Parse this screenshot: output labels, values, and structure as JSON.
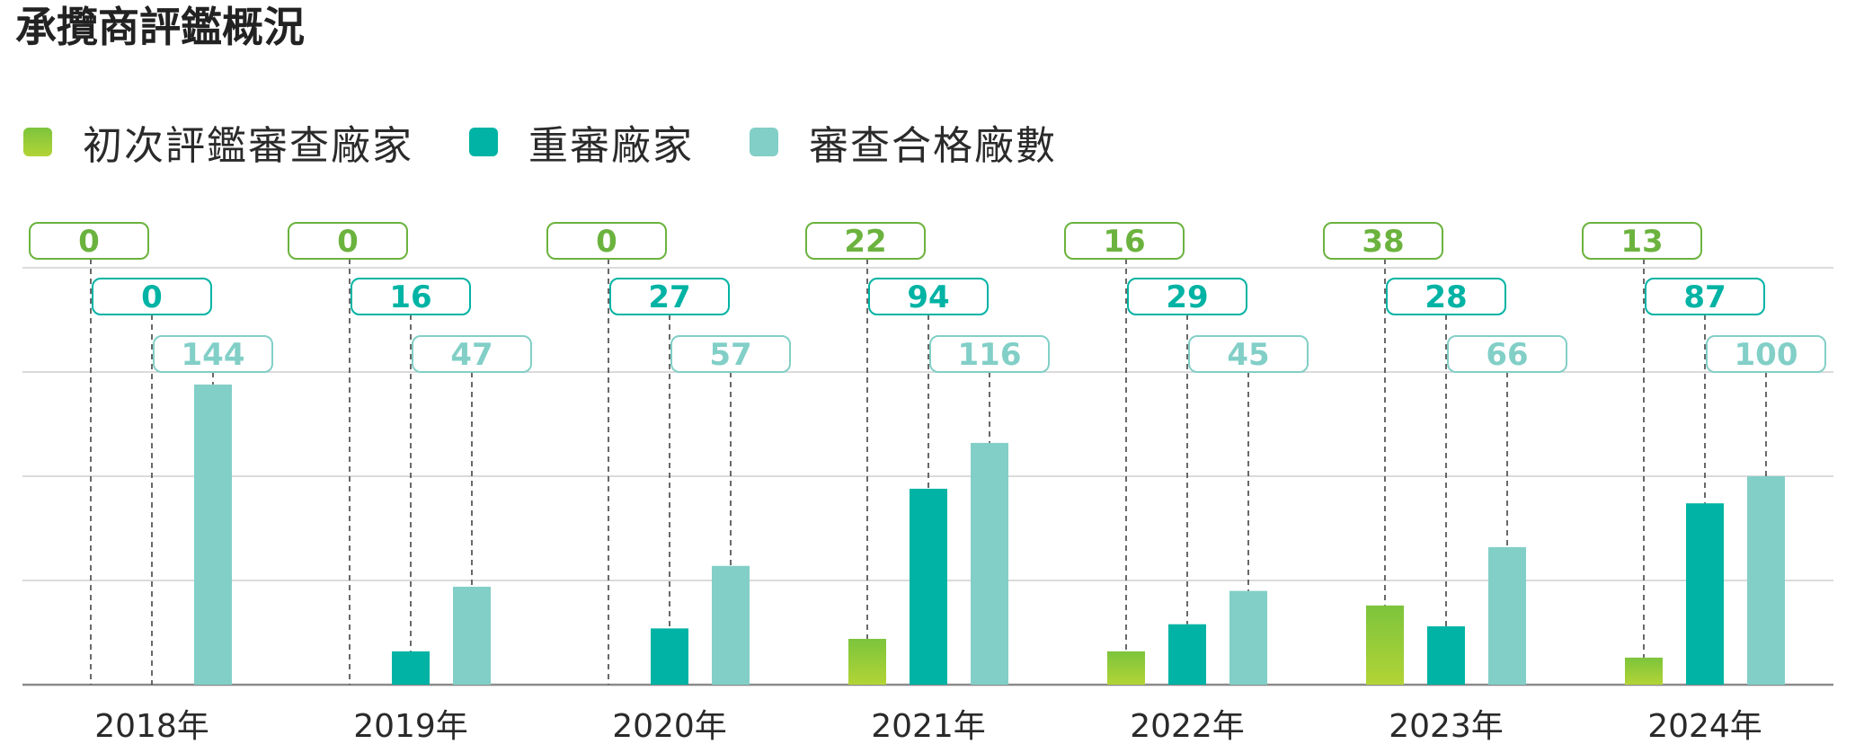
{
  "title": "承攬商評鑑概況",
  "colors": {
    "initial": [
      "#7cc43c",
      "#b2d436"
    ],
    "reaudit": "#00b3a4",
    "qualified": "#82cfc7",
    "initial_label": "#6bb33e",
    "grid": "#cfcfcf",
    "axis": "#8a8a8a",
    "leader": "#444444"
  },
  "chart_data": {
    "type": "bar",
    "title": "承攬商評鑑概況",
    "categories": [
      "2018年",
      "2019年",
      "2020年",
      "2021年",
      "2022年",
      "2023年",
      "2024年"
    ],
    "series": [
      {
        "name": "初次評鑑審查廠家",
        "values": [
          0,
          0,
          0,
          22,
          16,
          38,
          13
        ]
      },
      {
        "name": "重審廠家",
        "values": [
          0,
          16,
          27,
          94,
          29,
          28,
          87
        ]
      },
      {
        "name": "審查合格廠數",
        "values": [
          144,
          47,
          57,
          116,
          45,
          66,
          100
        ]
      }
    ],
    "ylim": [
      0,
      200
    ],
    "grid": true,
    "legend_position": "top-left",
    "data_labels": true
  }
}
